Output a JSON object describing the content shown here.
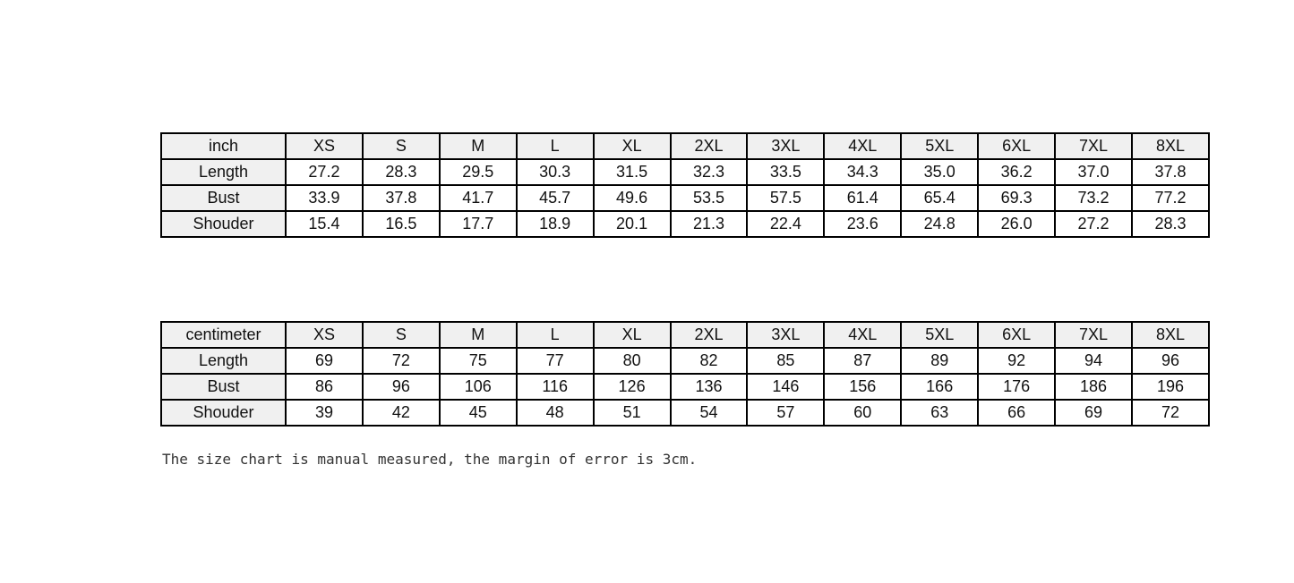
{
  "note": "The size chart is manual measured, the margin of error is 3cm.",
  "colors": {
    "page_bg": "#ffffff",
    "header_bg": "#f0f0f0",
    "border": "#000000",
    "cell_bg": "#ffffff",
    "text": "#111111",
    "note_text": "#333333"
  },
  "chart_data": [
    {
      "type": "table",
      "title": "inch",
      "unit_label": "inch",
      "columns": [
        "inch",
        "XS",
        "S",
        "M",
        "L",
        "XL",
        "2XL",
        "3XL",
        "4XL",
        "5XL",
        "6XL",
        "7XL",
        "8XL"
      ],
      "rows": [
        [
          "Length",
          "27.2",
          "28.3",
          "29.5",
          "30.3",
          "31.5",
          "32.3",
          "33.5",
          "34.3",
          "35.0",
          "36.2",
          "37.0",
          "37.8"
        ],
        [
          "Bust",
          "33.9",
          "37.8",
          "41.7",
          "45.7",
          "49.6",
          "53.5",
          "57.5",
          "61.4",
          "65.4",
          "69.3",
          "73.2",
          "77.2"
        ],
        [
          "Shouder",
          "15.4",
          "16.5",
          "17.7",
          "18.9",
          "20.1",
          "21.3",
          "22.4",
          "23.6",
          "24.8",
          "26.0",
          "27.2",
          "28.3"
        ]
      ]
    },
    {
      "type": "table",
      "title": "centimeter",
      "unit_label": "centimeter",
      "columns": [
        "centimeter",
        "XS",
        "S",
        "M",
        "L",
        "XL",
        "2XL",
        "3XL",
        "4XL",
        "5XL",
        "6XL",
        "7XL",
        "8XL"
      ],
      "rows": [
        [
          "Length",
          "69",
          "72",
          "75",
          "77",
          "80",
          "82",
          "85",
          "87",
          "89",
          "92",
          "94",
          "96"
        ],
        [
          "Bust",
          "86",
          "96",
          "106",
          "116",
          "126",
          "136",
          "146",
          "156",
          "166",
          "176",
          "186",
          "196"
        ],
        [
          "Shouder",
          "39",
          "42",
          "45",
          "48",
          "51",
          "54",
          "57",
          "60",
          "63",
          "66",
          "69",
          "72"
        ]
      ]
    }
  ]
}
